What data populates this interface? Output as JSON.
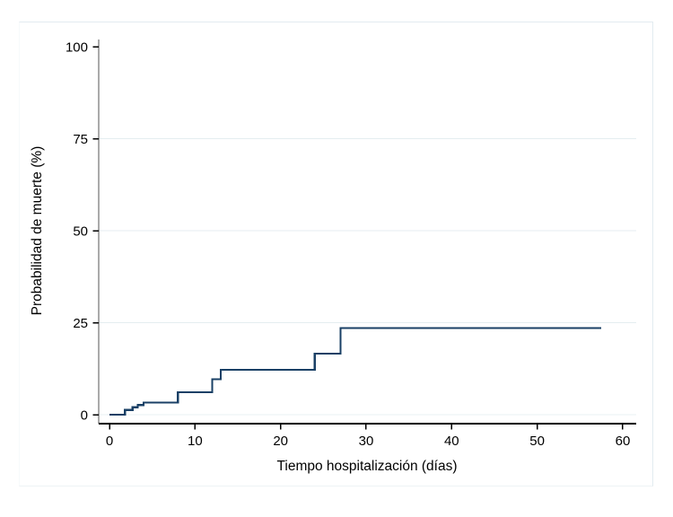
{
  "chart_data": {
    "type": "line",
    "style": "step-after",
    "title": "",
    "xlabel": "Tiempo hospitalización (días)",
    "ylabel": "Probabilidad de muerte (%)",
    "xlim": [
      0,
      60
    ],
    "ylim": [
      0,
      100
    ],
    "xticks": [
      0,
      10,
      20,
      30,
      40,
      50,
      60
    ],
    "yticks": [
      0,
      25,
      50,
      75,
      100
    ],
    "grid_y_values": [
      0,
      25,
      50,
      75
    ],
    "grid": "horizontal-only",
    "legend_position": "none",
    "series": [
      {
        "name": "Probabilidad de muerte",
        "color": "#1a4066",
        "points": [
          [
            0,
            0
          ],
          [
            1.8,
            1.3
          ],
          [
            2.7,
            2.0
          ],
          [
            3.3,
            2.6
          ],
          [
            4,
            3.3
          ],
          [
            8,
            6.1
          ],
          [
            12,
            9.6
          ],
          [
            13,
            12.2
          ],
          [
            24,
            16.6
          ],
          [
            27,
            23.5
          ],
          [
            57.5,
            23.5
          ]
        ]
      }
    ]
  },
  "colors": {
    "curve": "#1a4066",
    "gridline": "#e4edf0",
    "zero_gridline": "#e9f1f3",
    "outer_border": "#e2ebf0",
    "axis": "#000000",
    "y_axis_line": "#555555"
  }
}
